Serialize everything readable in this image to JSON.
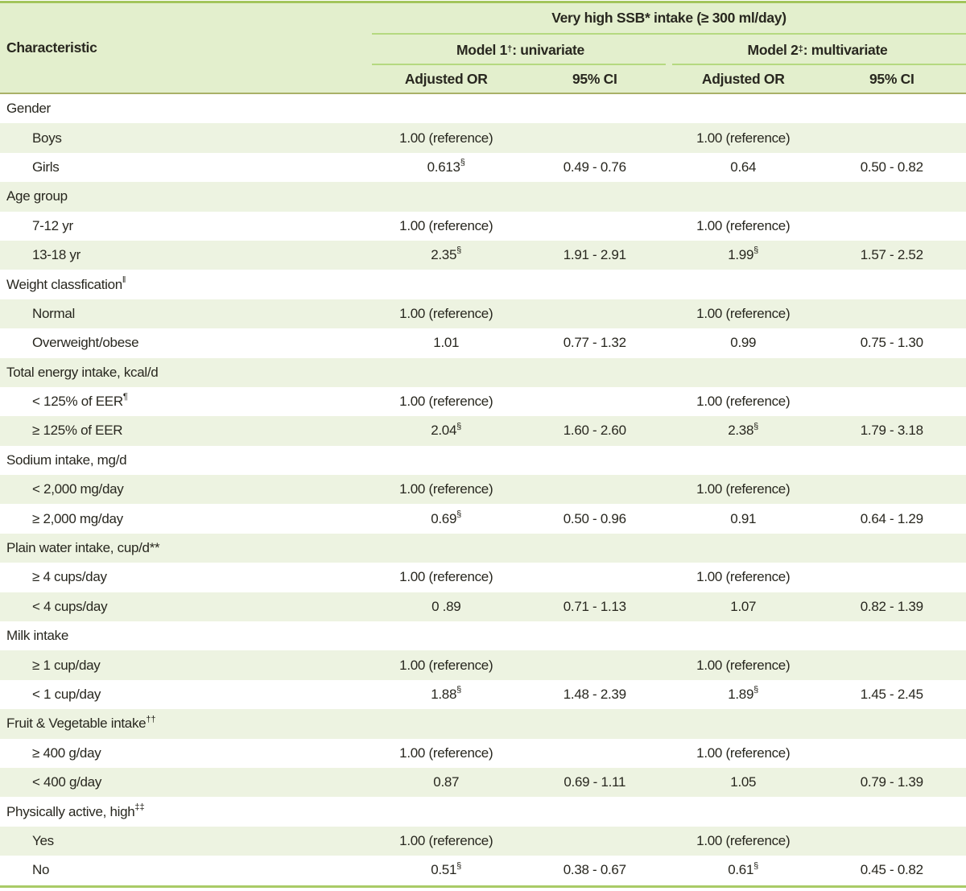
{
  "table": {
    "header": {
      "characteristic": "Characteristic",
      "span_title": "Very high SSB* intake (≥ 300 ml/day)",
      "model1": {
        "prefix": "Model 1",
        "sup": "†",
        "suffix": ": univariate"
      },
      "model2": {
        "prefix": "Model 2",
        "sup": "‡",
        "suffix": ": multivariate"
      },
      "col_or": "Adjusted OR",
      "col_ci": "95% CI"
    },
    "rows": [
      {
        "type": "category",
        "label": "Gender",
        "sup": ""
      },
      {
        "type": "item",
        "label": "Boys",
        "sup": "",
        "or1": "1.00 (reference)",
        "or1_sup": "",
        "ci1": "",
        "or2": "1.00 (reference)",
        "or2_sup": "",
        "ci2": ""
      },
      {
        "type": "item",
        "label": "Girls",
        "sup": "",
        "or1": "0.613",
        "or1_sup": "§",
        "ci1": "0.49 - 0.76",
        "or2": "0.64",
        "or2_sup": "",
        "ci2": "0.50 - 0.82"
      },
      {
        "type": "category",
        "label": "Age group",
        "sup": ""
      },
      {
        "type": "item",
        "label": "7-12 yr",
        "sup": "",
        "or1": "1.00 (reference)",
        "or1_sup": "",
        "ci1": "",
        "or2": "1.00 (reference)",
        "or2_sup": "",
        "ci2": ""
      },
      {
        "type": "item",
        "label": "13-18 yr",
        "sup": "",
        "or1": "2.35",
        "or1_sup": "§",
        "ci1": "1.91 - 2.91",
        "or2": "1.99",
        "or2_sup": "§",
        "ci2": "1.57 - 2.52"
      },
      {
        "type": "category",
        "label": "Weight classfication",
        "sup": "‖"
      },
      {
        "type": "item",
        "label": "Normal",
        "sup": "",
        "or1": "1.00 (reference)",
        "or1_sup": "",
        "ci1": "",
        "or2": "1.00 (reference)",
        "or2_sup": "",
        "ci2": ""
      },
      {
        "type": "item",
        "label": "Overweight/obese",
        "sup": "",
        "or1": "1.01",
        "or1_sup": "",
        "ci1": "0.77 - 1.32",
        "or2": "0.99",
        "or2_sup": "",
        "ci2": "0.75 - 1.30"
      },
      {
        "type": "category",
        "label": "Total energy intake, kcal/d",
        "sup": ""
      },
      {
        "type": "item",
        "label": "< 125% of EER",
        "sup": "¶",
        "or1": "1.00 (reference)",
        "or1_sup": "",
        "ci1": "",
        "or2": "1.00 (reference)",
        "or2_sup": "",
        "ci2": ""
      },
      {
        "type": "item",
        "label": "≥ 125% of EER",
        "sup": "",
        "or1": "2.04",
        "or1_sup": "§",
        "ci1": "1.60 - 2.60",
        "or2": "2.38",
        "or2_sup": "§",
        "ci2": "1.79 - 3.18"
      },
      {
        "type": "category",
        "label": "Sodium intake, mg/d",
        "sup": ""
      },
      {
        "type": "item",
        "label": "< 2,000 mg/day",
        "sup": "",
        "or1": "1.00 (reference)",
        "or1_sup": "",
        "ci1": "",
        "or2": "1.00 (reference)",
        "or2_sup": "",
        "ci2": ""
      },
      {
        "type": "item",
        "label": "≥ 2,000 mg/day",
        "sup": "",
        "or1": "0.69",
        "or1_sup": "§",
        "ci1": "0.50 - 0.96",
        "or2": "0.91",
        "or2_sup": "",
        "ci2": "0.64 - 1.29"
      },
      {
        "type": "category",
        "label": "Plain water intake, cup/d**",
        "sup": ""
      },
      {
        "type": "item",
        "label": "≥ 4 cups/day",
        "sup": "",
        "or1": "1.00 (reference)",
        "or1_sup": "",
        "ci1": "",
        "or2": "1.00 (reference)",
        "or2_sup": "",
        "ci2": ""
      },
      {
        "type": "item",
        "label": "< 4 cups/day",
        "sup": "",
        "or1": "0 .89",
        "or1_sup": "",
        "ci1": "0.71 - 1.13",
        "or2": "1.07",
        "or2_sup": "",
        "ci2": "0.82 - 1.39"
      },
      {
        "type": "category",
        "label": "Milk intake",
        "sup": ""
      },
      {
        "type": "item",
        "label": "≥ 1 cup/day",
        "sup": "",
        "or1": "1.00 (reference)",
        "or1_sup": "",
        "ci1": "",
        "or2": "1.00 (reference)",
        "or2_sup": "",
        "ci2": ""
      },
      {
        "type": "item",
        "label": "< 1 cup/day",
        "sup": "",
        "or1": "1.88",
        "or1_sup": "§",
        "ci1": "1.48 - 2.39",
        "or2": "1.89",
        "or2_sup": "§",
        "ci2": "1.45 - 2.45"
      },
      {
        "type": "category",
        "label": "Fruit & Vegetable intake",
        "sup": "††"
      },
      {
        "type": "item",
        "label": "≥ 400 g/day",
        "sup": "",
        "or1": "1.00 (reference)",
        "or1_sup": "",
        "ci1": "",
        "or2": "1.00 (reference)",
        "or2_sup": "",
        "ci2": ""
      },
      {
        "type": "item",
        "label": "< 400 g/day",
        "sup": "",
        "or1": "0.87",
        "or1_sup": "",
        "ci1": "0.69 - 1.11",
        "or2": "1.05",
        "or2_sup": "",
        "ci2": "0.79 - 1.39"
      },
      {
        "type": "category",
        "label": "Physically active, high",
        "sup": "‡‡"
      },
      {
        "type": "item",
        "label": "Yes",
        "sup": "",
        "or1": "1.00 (reference)",
        "or1_sup": "",
        "ci1": "",
        "or2": "1.00 (reference)",
        "or2_sup": "",
        "ci2": ""
      },
      {
        "type": "item",
        "label": "No",
        "sup": "",
        "or1": "0.51",
        "or1_sup": "§",
        "ci1": "0.38 - 0.67",
        "or2": "0.61",
        "or2_sup": "§",
        "ci2": "0.45 - 0.82"
      }
    ]
  },
  "colors": {
    "header_bg": "#e3efcd",
    "stripe_bg": "#edf3e1",
    "top_rule": "#a3c55b",
    "header_inner_rule": "#b5d980",
    "header_bottom_rule": "#a9b168",
    "bottom_rule": "#a9cb66",
    "text": "#28271f"
  }
}
